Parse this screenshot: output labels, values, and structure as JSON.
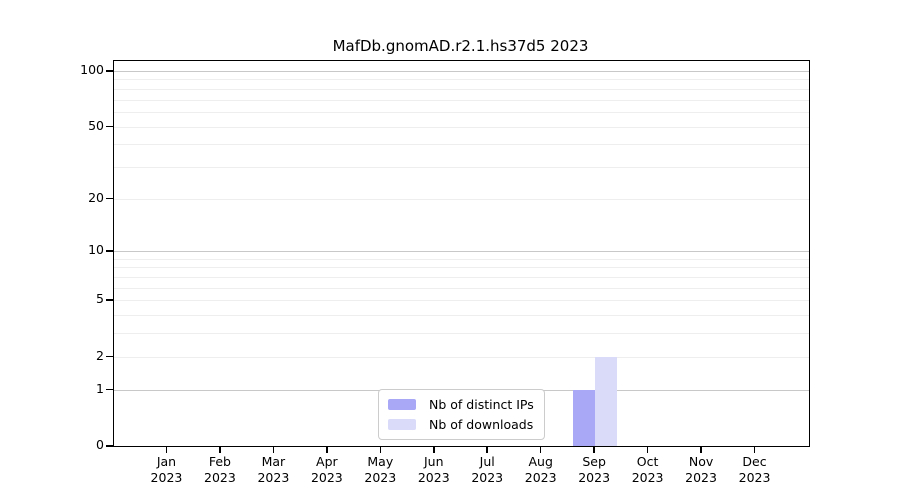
{
  "chart_data": {
    "type": "bar",
    "title": "MafDb.gnomAD.r2.1.hs37d5 2023",
    "categories": [
      "Jan",
      "Feb",
      "Mar",
      "Apr",
      "May",
      "Jun",
      "Jul",
      "Aug",
      "Sep",
      "Oct",
      "Nov",
      "Dec"
    ],
    "category_year": "2023",
    "series": [
      {
        "name": "Nb of distinct IPs",
        "color": "#a8a8f6",
        "values": [
          0,
          0,
          0,
          0,
          0,
          0,
          0,
          0,
          1,
          0,
          0,
          0
        ]
      },
      {
        "name": "Nb of downloads",
        "color": "#d9dbf9",
        "values": [
          0,
          0,
          0,
          0,
          0,
          0,
          0,
          0,
          2,
          0,
          0,
          0
        ]
      }
    ],
    "yscale": "log1p",
    "ylim": [
      0,
      100
    ],
    "yticks": [
      100,
      50,
      20,
      10,
      5,
      2,
      1,
      0
    ],
    "grid": {
      "major_values": [
        1,
        10,
        100
      ],
      "minor_values": [
        2,
        3,
        4,
        5,
        6,
        7,
        8,
        9,
        20,
        30,
        40,
        50,
        60,
        70,
        80,
        90
      ],
      "major_color": "#c8c8c8",
      "minor_color": "#eeeeee"
    },
    "legend": {
      "position": "inside-bottom-center"
    },
    "axis_color": "#000000",
    "xlabel": "",
    "ylabel": ""
  }
}
